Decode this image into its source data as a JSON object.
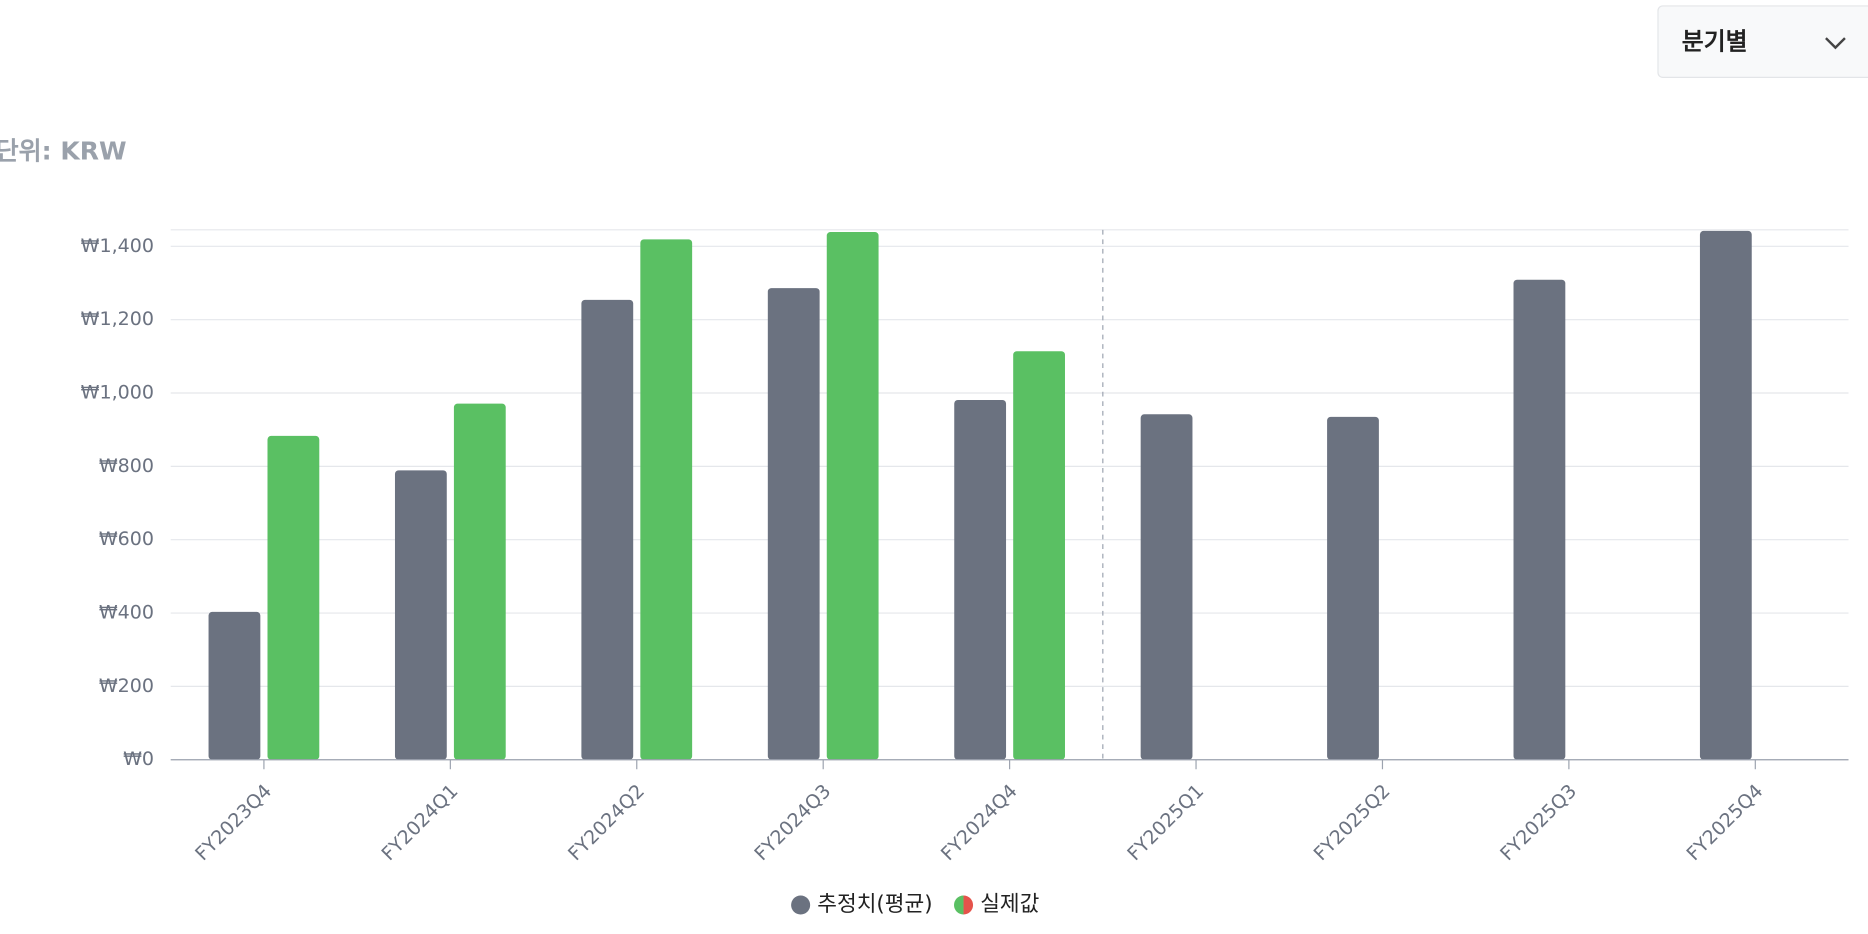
{
  "chart_data": {
    "type": "bar",
    "unit_label": "단위: KRW",
    "period_selector": "분기별",
    "categories": [
      "FY2023Q4",
      "FY2024Q1",
      "FY2024Q2",
      "FY2024Q3",
      "FY2024Q4",
      "FY2025Q1",
      "FY2025Q2",
      "FY2025Q3",
      "FY2025Q4"
    ],
    "series": [
      {
        "name": "추정치(평균)",
        "color": "#6b7280",
        "values": [
          403,
          789,
          1254,
          1286,
          981,
          942,
          935,
          1309,
          1442
        ]
      },
      {
        "name": "실제값",
        "color": "#5ac063",
        "values": [
          883,
          971,
          1419,
          1439,
          1114,
          null,
          null,
          null,
          null
        ]
      }
    ],
    "ylim": [
      0,
      1445
    ],
    "yticks": [
      {
        "value": 0,
        "label": "₩0"
      },
      {
        "value": 200,
        "label": "₩200"
      },
      {
        "value": 400,
        "label": "₩400"
      },
      {
        "value": 600,
        "label": "₩600"
      },
      {
        "value": 800,
        "label": "₩800"
      },
      {
        "value": 1000,
        "label": "₩1,000"
      },
      {
        "value": 1200,
        "label": "₩1,200"
      },
      {
        "value": 1400,
        "label": "₩1,400"
      }
    ],
    "grid": true
  }
}
